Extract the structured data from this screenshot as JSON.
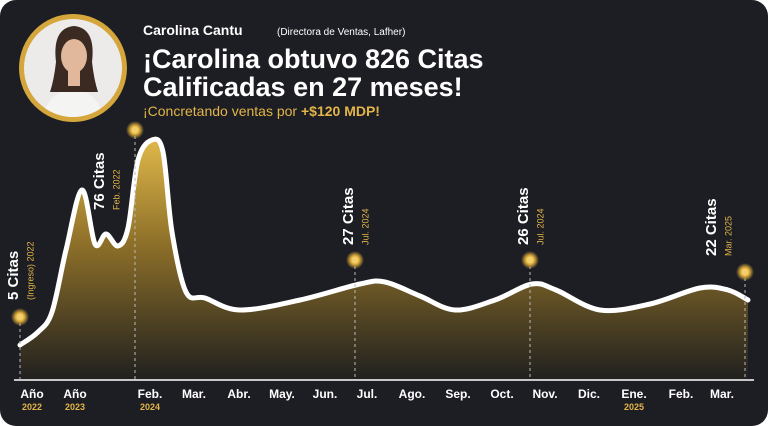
{
  "header": {
    "name": "Carolina Cantu",
    "role": "(Directora de Ventas, Lafher)",
    "title_line1": "¡Carolina obtuvo 826 Citas",
    "title_line2": "Calificadas en 27 meses!",
    "subtitle": "¡Concretando ventas por",
    "subtitle_strong": "+$120 MDP!"
  },
  "annotations": [
    {
      "label": "5 Citas",
      "sub": "(Ingreso) 2022"
    },
    {
      "label": "76 Citas",
      "sub": "Feb. 2022"
    },
    {
      "label": "27 Citas",
      "sub": "Jul. 2024"
    },
    {
      "label": "26 Citas",
      "sub": "Jul. 2024"
    },
    {
      "label": "22 Citas",
      "sub": "Mar. 2025"
    }
  ],
  "x_labels": [
    {
      "label": "Año",
      "sub": "2022"
    },
    {
      "label": "Año",
      "sub": "2023"
    },
    {
      "label": "Feb.",
      "sub": "2024"
    },
    {
      "label": "Mar."
    },
    {
      "label": "Abr."
    },
    {
      "label": "May."
    },
    {
      "label": "Jun."
    },
    {
      "label": "Jul."
    },
    {
      "label": "Ago."
    },
    {
      "label": "Sep."
    },
    {
      "label": "Oct."
    },
    {
      "label": "Nov."
    },
    {
      "label": "Dic."
    },
    {
      "label": "Ene.",
      "sub": "2025"
    },
    {
      "label": "Feb."
    },
    {
      "label": "Mar."
    }
  ]
}
